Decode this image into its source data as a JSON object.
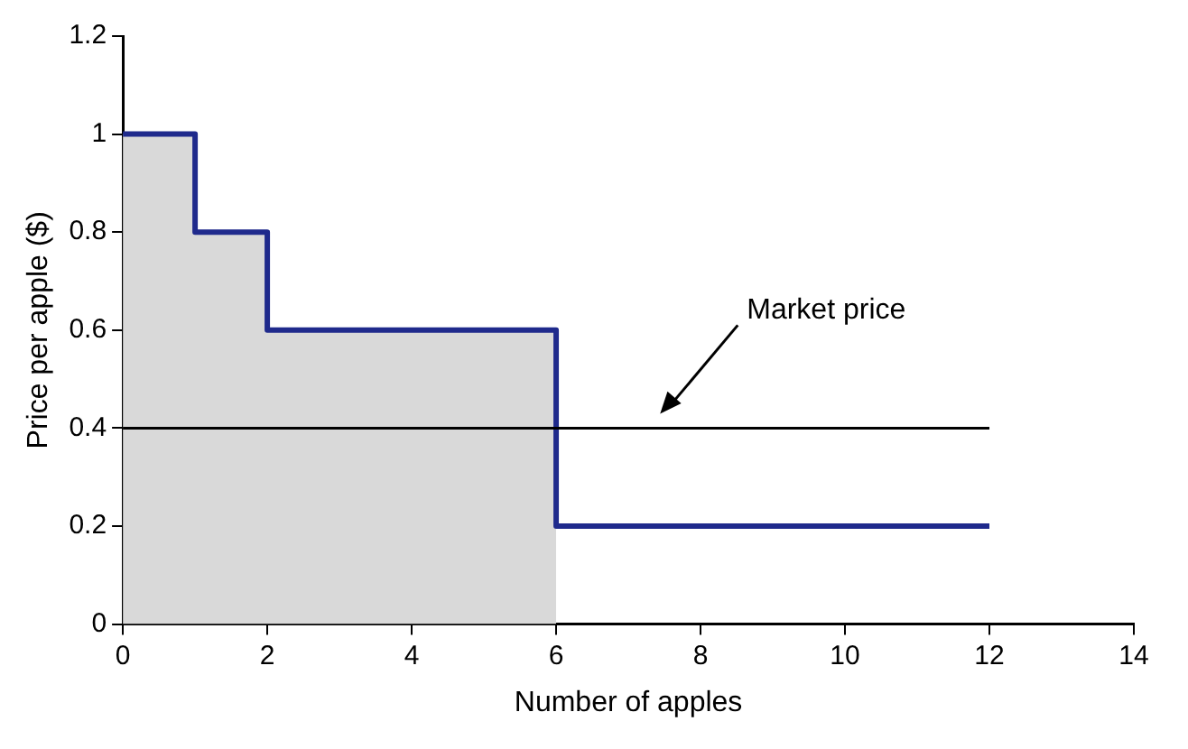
{
  "chart_data": {
    "type": "step",
    "xlabel": "Number of apples",
    "ylabel": "Price per apple ($)",
    "xlim": [
      0,
      14
    ],
    "xticks": [
      0,
      2,
      4,
      6,
      8,
      10,
      12,
      14
    ],
    "ylim": [
      0,
      1.2
    ],
    "yticks": [
      0,
      0.2,
      0.4,
      0.6,
      0.8,
      1,
      1.2
    ],
    "grid": false,
    "legend": false,
    "series": [
      {
        "type": "area",
        "color": "#d9d9d9",
        "x": [
          0,
          1,
          2,
          6
        ],
        "values": [
          1,
          0.8,
          0.6,
          0.6
        ]
      },
      {
        "type": "step",
        "color": "#1f2a8c",
        "x": [
          0,
          1,
          2,
          6,
          12
        ],
        "values": [
          1,
          0.8,
          0.6,
          0.2,
          0.2
        ]
      }
    ],
    "ref_lines": [
      {
        "axis": "y",
        "value": 0.4,
        "label": "Market price",
        "color": "#000000"
      }
    ]
  }
}
